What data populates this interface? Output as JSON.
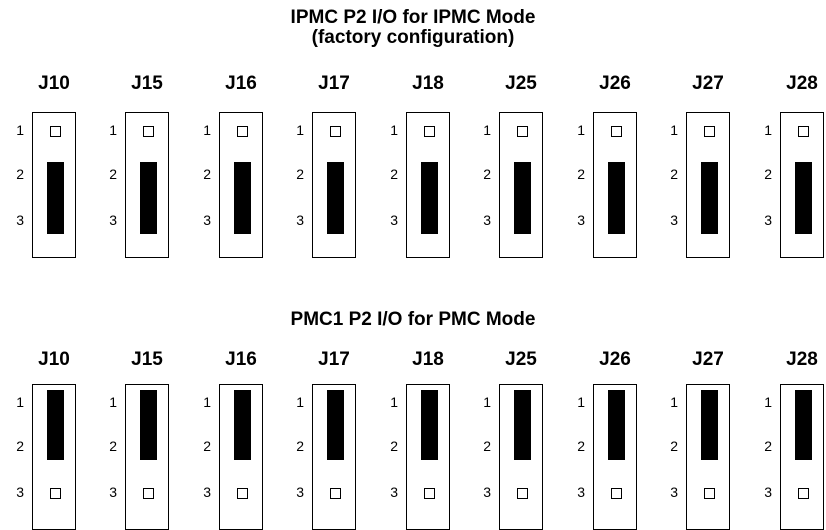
{
  "sections": [
    {
      "title_lines": [
        "IPMC P2 I/O for IPMC Mode",
        "(factory configuration)"
      ],
      "shunt_pins": [
        2,
        3
      ],
      "open_pin": 1
    },
    {
      "title_lines": [
        "PMC1 P2 I/O for PMC Mode"
      ],
      "shunt_pins": [
        1,
        2
      ],
      "open_pin": 3
    }
  ],
  "jumpers": [
    "J10",
    "J15",
    "J16",
    "J17",
    "J18",
    "J25",
    "J26",
    "J27",
    "J28"
  ],
  "pin_labels": [
    "1",
    "2",
    "3"
  ]
}
